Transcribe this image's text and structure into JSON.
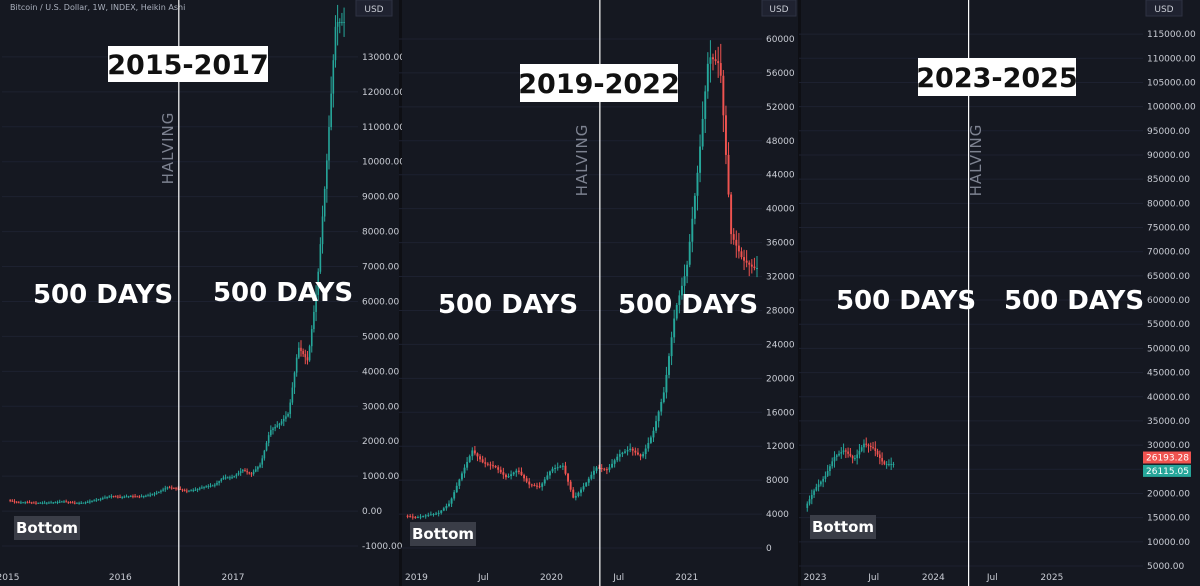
{
  "header": {
    "symbol_info": "Bitcoin / U.S. Dollar, 1W, INDEX, Heikin Ashi"
  },
  "colors": {
    "up": "#26a69a",
    "down": "#ef5350",
    "background": "#151821",
    "panel_gap": "#0e0f14"
  },
  "chart_data": [
    {
      "type": "candlestick",
      "title": "2015-2017",
      "currency_label": "USD",
      "halving_label": "HALVING",
      "left_label": "500 DAYS",
      "right_label": "500 DAYS",
      "bottom_label": "Bottom",
      "x_ticks": [
        "2015",
        "2016",
        "2017"
      ],
      "y_ticks": [
        "13000.00",
        "12000.00",
        "11000.00",
        "10000.00",
        "9000.00",
        "8000.00",
        "7000.00",
        "6000.00",
        "5000.00",
        "4000.00",
        "3000.00",
        "2000.00",
        "1000.00",
        "0.00",
        "-1000.00"
      ],
      "ylim": [
        -1000,
        14000
      ],
      "x_range": [
        "2015-01-01",
        "2017-12-31"
      ],
      "halving_date": "2016-07-09",
      "series": [
        {
          "points": [
            [
              "2015-01-01",
              315
            ],
            [
              "2015-02-01",
              245
            ],
            [
              "2015-03-01",
              255
            ],
            [
              "2015-04-01",
              235
            ],
            [
              "2015-05-01",
              238
            ],
            [
              "2015-06-01",
              250
            ],
            [
              "2015-07-01",
              280
            ],
            [
              "2015-08-01",
              235
            ],
            [
              "2015-09-01",
              235
            ],
            [
              "2015-10-01",
              290
            ],
            [
              "2015-11-01",
              360
            ],
            [
              "2015-12-01",
              430
            ],
            [
              "2016-01-01",
              400
            ],
            [
              "2016-02-01",
              430
            ],
            [
              "2016-03-01",
              415
            ],
            [
              "2016-04-01",
              450
            ],
            [
              "2016-05-01",
              530
            ],
            [
              "2016-06-01",
              680
            ],
            [
              "2016-07-01",
              650
            ],
            [
              "2016-08-01",
              575
            ],
            [
              "2016-09-01",
              610
            ],
            [
              "2016-10-01",
              700
            ],
            [
              "2016-11-01",
              740
            ],
            [
              "2016-12-01",
              960
            ],
            [
              "2017-01-01",
              970
            ],
            [
              "2017-02-01",
              1180
            ],
            [
              "2017-03-01",
              1050
            ],
            [
              "2017-04-01",
              1350
            ],
            [
              "2017-05-01",
              2300
            ],
            [
              "2017-06-01",
              2500
            ],
            [
              "2017-07-01",
              2800
            ],
            [
              "2017-08-01",
              4700
            ],
            [
              "2017-09-01",
              4300
            ],
            [
              "2017-10-01",
              6400
            ],
            [
              "2017-11-01",
              9900
            ],
            [
              "2017-12-01",
              14000
            ]
          ]
        }
      ]
    },
    {
      "type": "candlestick",
      "title": "2019-2022",
      "currency_label": "USD",
      "halving_label": "HALVING",
      "left_label": "500 DAYS",
      "right_label": "500 DAYS",
      "bottom_label": "Bottom",
      "x_ticks": [
        "2019",
        "Jul",
        "2020",
        "Jul",
        "2021"
      ],
      "y_ticks": [
        "60000",
        "56000",
        "52000",
        "48000",
        "44000",
        "40000",
        "36000",
        "32000",
        "28000",
        "24000",
        "20000",
        "16000",
        "12000",
        "8000",
        "4000",
        "0"
      ],
      "ylim": [
        0,
        62000
      ],
      "x_range": [
        "2018-12-01",
        "2021-07-10"
      ],
      "halving_date": "2020-05-11",
      "series": [
        {
          "points": [
            [
              "2018-12-01",
              3800
            ],
            [
              "2019-01-01",
              3600
            ],
            [
              "2019-02-01",
              3900
            ],
            [
              "2019-03-01",
              4100
            ],
            [
              "2019-04-01",
              5300
            ],
            [
              "2019-05-01",
              8500
            ],
            [
              "2019-06-01",
              11500
            ],
            [
              "2019-07-01",
              10000
            ],
            [
              "2019-08-01",
              9600
            ],
            [
              "2019-09-01",
              8300
            ],
            [
              "2019-10-01",
              9200
            ],
            [
              "2019-11-01",
              7500
            ],
            [
              "2019-12-01",
              7200
            ],
            [
              "2020-01-01",
              9300
            ],
            [
              "2020-02-01",
              9700
            ],
            [
              "2020-03-01",
              5800
            ],
            [
              "2020-04-01",
              7500
            ],
            [
              "2020-05-01",
              9500
            ],
            [
              "2020-06-01",
              9200
            ],
            [
              "2020-07-01",
              11000
            ],
            [
              "2020-08-01",
              11700
            ],
            [
              "2020-09-01",
              10700
            ],
            [
              "2020-10-01",
              13500
            ],
            [
              "2020-11-01",
              18500
            ],
            [
              "2020-12-01",
              28000
            ],
            [
              "2021-01-01",
              33000
            ],
            [
              "2021-02-01",
              45000
            ],
            [
              "2021-03-01",
              58000
            ],
            [
              "2021-04-01",
              57000
            ],
            [
              "2021-05-01",
              37000
            ],
            [
              "2021-06-01",
              34000
            ],
            [
              "2021-07-01",
              33000
            ]
          ]
        }
      ]
    },
    {
      "type": "candlestick",
      "title": "2023-2025",
      "currency_label": "USD",
      "halving_label": "HALVING",
      "left_label": "500 DAYS",
      "right_label": "500 DAYS",
      "bottom_label": "Bottom",
      "x_ticks": [
        "2023",
        "Jul",
        "2024",
        "Jul",
        "2025"
      ],
      "y_ticks": [
        "115000.00",
        "110000.00",
        "105000.00",
        "100000.00",
        "95000.00",
        "90000.00",
        "85000.00",
        "80000.00",
        "75000.00",
        "70000.00",
        "65000.00",
        "60000.00",
        "55000.00",
        "50000.00",
        "45000.00",
        "40000.00",
        "35000.00",
        "30000.00",
        "25000.00",
        "20000.00",
        "15000.00",
        "10000.00",
        "5000.00"
      ],
      "ylim": [
        5000,
        117500
      ],
      "x_range": [
        "2022-12-01",
        "2025-09-30"
      ],
      "halving_date": "2024-04-19",
      "price_tags": [
        {
          "value": "26193.28",
          "color": "#ef5350",
          "price": 26193
        },
        {
          "value": "26115.05",
          "color": "#26a69a",
          "price": 26115
        }
      ],
      "series": [
        {
          "points": [
            [
              "2022-12-01",
              17000
            ],
            [
              "2023-01-01",
              21000
            ],
            [
              "2023-02-01",
              23500
            ],
            [
              "2023-03-01",
              27500
            ],
            [
              "2023-04-01",
              29000
            ],
            [
              "2023-05-01",
              27000
            ],
            [
              "2023-06-01",
              30300
            ],
            [
              "2023-07-01",
              29300
            ],
            [
              "2023-08-01",
              26100
            ]
          ]
        }
      ]
    }
  ]
}
